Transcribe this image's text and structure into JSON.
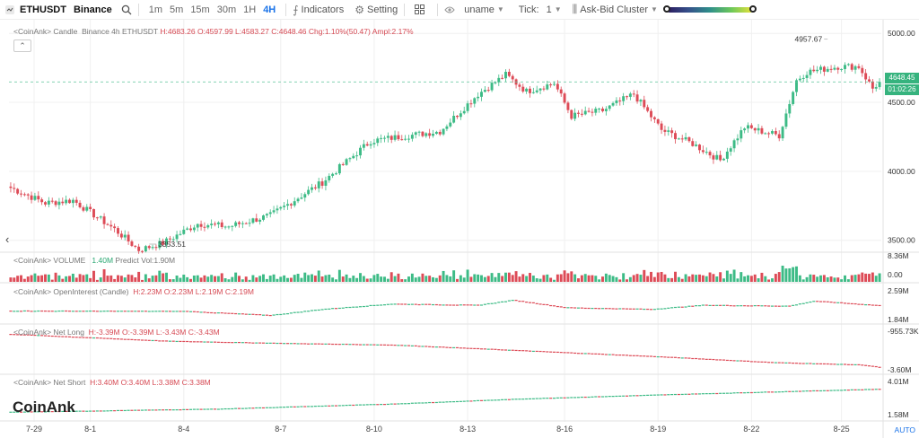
{
  "toolbar": {
    "symbol": "ETHUSDT",
    "exchange": "Binance",
    "timeframes": [
      "1m",
      "5m",
      "15m",
      "30m",
      "1H",
      "4H"
    ],
    "active_timeframe": "4H",
    "indicators_label": "Indicators",
    "setting_label": "Setting",
    "user_label": "uname",
    "tick_label": "Tick:",
    "tick_value": "1",
    "cluster_label": "Ask-Bid Cluster"
  },
  "legends": {
    "candle": {
      "prefix": "<CoinAnk> Candle",
      "info": "Binance 4h ETHUSDT",
      "h": "H:4683.26",
      "o": "O:4597.99",
      "l": "L:4583.27",
      "c": "C:4648.46",
      "chg": "Chg:1.10%(50.47)",
      "ampl": "Ampl:2.17%"
    },
    "volume": {
      "prefix": "<CoinAnk> VOLUME",
      "val": "1.40M",
      "predict": "Predict Vol:1.90M"
    },
    "oi": {
      "prefix": "<CoinAnk> OpenInterest (Candle)",
      "h": "H:2.23M",
      "o": "O:2.23M",
      "l": "L:2.19M",
      "c": "C:2.19M"
    },
    "netlong": {
      "prefix": "<CoinAnk> Net Long",
      "h": "H:-3.39M",
      "o": "O:-3.39M",
      "l": "L:-3.43M",
      "c": "C:-3.43M"
    },
    "netshort": {
      "prefix": "<CoinAnk> Net Short",
      "h": "H:3.40M",
      "o": "O:3.40M",
      "l": "L:3.38M",
      "c": "C:3.38M"
    }
  },
  "price_tags": {
    "last": "4648.45",
    "countdown": "01:02:26"
  },
  "brand": "CoinAnk",
  "auto_label": "AUTO",
  "chart_data": [
    {
      "type": "candlestick",
      "name": "Candle",
      "x_ticks": [
        "7-29",
        "8-1",
        "8-4",
        "8-7",
        "8-10",
        "8-13",
        "8-16",
        "8-19",
        "8-22",
        "8-25"
      ],
      "y_ticks": [
        5000.0,
        4500.0,
        4000.0,
        3500.0
      ],
      "ylim": [
        3420,
        5060
      ],
      "high_marker": "4957.67",
      "low_marker": "3353.51",
      "last_price": 4648.45,
      "close_anchors": [
        {
          "bar": 0,
          "close": 3880
        },
        {
          "bar": 10,
          "close": 3770
        },
        {
          "bar": 18,
          "close": 3790
        },
        {
          "bar": 30,
          "close": 3580
        },
        {
          "bar": 37,
          "close": 3430
        },
        {
          "bar": 44,
          "close": 3480
        },
        {
          "bar": 54,
          "close": 3620
        },
        {
          "bar": 63,
          "close": 3600
        },
        {
          "bar": 75,
          "close": 3680
        },
        {
          "bar": 90,
          "close": 3920
        },
        {
          "bar": 104,
          "close": 4220
        },
        {
          "bar": 115,
          "close": 4260
        },
        {
          "bar": 124,
          "close": 4290
        },
        {
          "bar": 135,
          "close": 4560
        },
        {
          "bar": 143,
          "close": 4700
        },
        {
          "bar": 149,
          "close": 4580
        },
        {
          "bar": 157,
          "close": 4640
        },
        {
          "bar": 162,
          "close": 4400
        },
        {
          "bar": 171,
          "close": 4440
        },
        {
          "bar": 180,
          "close": 4560
        },
        {
          "bar": 188,
          "close": 4300
        },
        {
          "bar": 197,
          "close": 4200
        },
        {
          "bar": 205,
          "close": 4080
        },
        {
          "bar": 212,
          "close": 4320
        },
        {
          "bar": 222,
          "close": 4260
        },
        {
          "bar": 227,
          "close": 4660
        },
        {
          "bar": 230,
          "close": 4720
        },
        {
          "bar": 239,
          "close": 4760
        },
        {
          "bar": 245,
          "close": 4760
        },
        {
          "bar": 249,
          "close": 4600
        },
        {
          "bar": 251,
          "close": 4648
        }
      ]
    },
    {
      "type": "bar",
      "name": "VOLUME",
      "y_ticks": [
        "8.36M",
        "0.00"
      ]
    },
    {
      "type": "candlestick",
      "name": "OpenInterest (Candle)",
      "y_ticks": [
        "2.59M",
        "1.84M"
      ],
      "ylim": [
        1.84,
        2.59
      ],
      "anchors": [
        {
          "bar": 0,
          "value": 2.06
        },
        {
          "bar": 50,
          "value": 2.05
        },
        {
          "bar": 75,
          "value": 1.95
        },
        {
          "bar": 90,
          "value": 2.1
        },
        {
          "bar": 110,
          "value": 2.23
        },
        {
          "bar": 135,
          "value": 2.2
        },
        {
          "bar": 145,
          "value": 2.32
        },
        {
          "bar": 160,
          "value": 2.14
        },
        {
          "bar": 185,
          "value": 2.1
        },
        {
          "bar": 200,
          "value": 2.2
        },
        {
          "bar": 225,
          "value": 2.18
        },
        {
          "bar": 232,
          "value": 2.3
        },
        {
          "bar": 251,
          "value": 2.19
        }
      ]
    },
    {
      "type": "candlestick",
      "name": "Net Long",
      "y_ticks": [
        "-955.73K",
        "-3.60M"
      ],
      "ylim": [
        -3.6,
        -0.95573
      ],
      "anchors": [
        {
          "bar": 0,
          "value": -1.25
        },
        {
          "bar": 45,
          "value": -1.7
        },
        {
          "bar": 80,
          "value": -1.85
        },
        {
          "bar": 110,
          "value": -1.95
        },
        {
          "bar": 150,
          "value": -2.35
        },
        {
          "bar": 185,
          "value": -2.7
        },
        {
          "bar": 220,
          "value": -3.1
        },
        {
          "bar": 245,
          "value": -3.25
        },
        {
          "bar": 251,
          "value": -3.43
        }
      ]
    },
    {
      "type": "candlestick",
      "name": "Net Short",
      "y_ticks": [
        "4.01M",
        "1.58M"
      ],
      "ylim": [
        1.58,
        4.01
      ],
      "anchors": [
        {
          "bar": 0,
          "value": 1.78
        },
        {
          "bar": 60,
          "value": 2.0
        },
        {
          "bar": 110,
          "value": 2.35
        },
        {
          "bar": 150,
          "value": 2.72
        },
        {
          "bar": 190,
          "value": 3.0
        },
        {
          "bar": 225,
          "value": 3.22
        },
        {
          "bar": 251,
          "value": 3.38
        }
      ]
    }
  ]
}
